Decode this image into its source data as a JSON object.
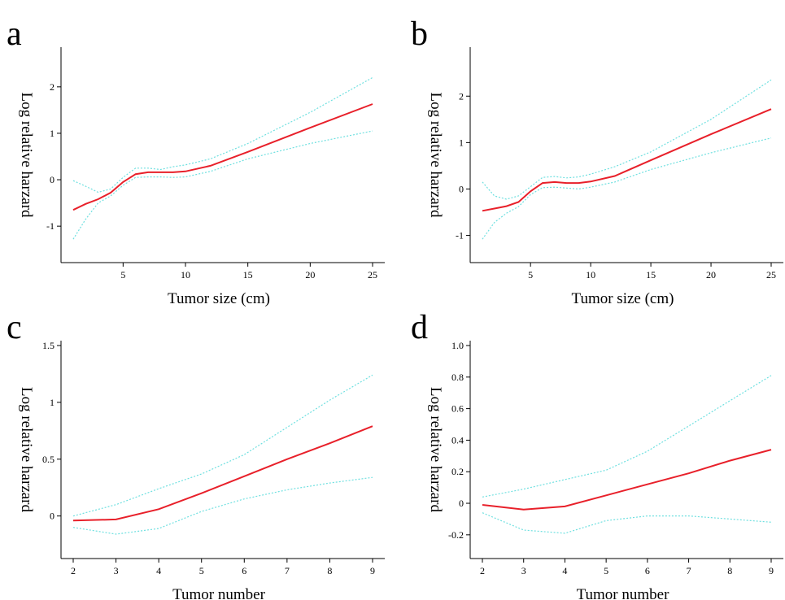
{
  "colors": {
    "estimate": "#e8202a",
    "ci": "#6fe0e0",
    "axis": "#000000"
  },
  "chart_data": [
    {
      "panel": "a",
      "type": "line",
      "xlabel": "Tumor size (cm)",
      "ylabel": "Log relative harzard",
      "xlim": [
        1,
        25
      ],
      "ylim": [
        -1.75,
        2.75
      ],
      "xticks": [
        5,
        10,
        15,
        20,
        25
      ],
      "yticks": [
        -1,
        0,
        1,
        2
      ],
      "series": [
        {
          "role": "estimate",
          "x": [
            1,
            2,
            3,
            4,
            5,
            6,
            7,
            8,
            9,
            10,
            12,
            15,
            20,
            25
          ],
          "y": [
            -0.65,
            -0.52,
            -0.42,
            -0.28,
            -0.05,
            0.12,
            0.16,
            0.16,
            0.16,
            0.18,
            0.3,
            0.6,
            1.12,
            1.63
          ]
        },
        {
          "role": "upper",
          "x": [
            1,
            2,
            3,
            4,
            5,
            6,
            7,
            8,
            9,
            10,
            12,
            15,
            20,
            25
          ],
          "y": [
            -0.02,
            -0.14,
            -0.27,
            -0.2,
            0.05,
            0.25,
            0.25,
            0.22,
            0.28,
            0.32,
            0.45,
            0.78,
            1.45,
            2.2
          ]
        },
        {
          "role": "lower",
          "x": [
            1,
            2,
            3,
            4,
            5,
            6,
            7,
            8,
            9,
            10,
            12,
            15,
            20,
            25
          ],
          "y": [
            -1.28,
            -0.85,
            -0.5,
            -0.35,
            -0.12,
            0.05,
            0.06,
            0.06,
            0.05,
            0.06,
            0.18,
            0.45,
            0.78,
            1.05
          ]
        }
      ]
    },
    {
      "panel": "b",
      "type": "line",
      "xlabel": "Tumor size (cm)",
      "ylabel": "Log relative harzard",
      "xlim": [
        1,
        25
      ],
      "ylim": [
        -1.55,
        2.95
      ],
      "xticks": [
        5,
        10,
        15,
        20,
        25
      ],
      "yticks": [
        -1,
        0,
        1,
        2
      ],
      "series": [
        {
          "role": "estimate",
          "x": [
            1,
            2,
            3,
            4,
            5,
            6,
            7,
            8,
            9,
            10,
            12,
            15,
            20,
            25
          ],
          "y": [
            -0.47,
            -0.42,
            -0.37,
            -0.28,
            -0.05,
            0.13,
            0.15,
            0.13,
            0.13,
            0.16,
            0.28,
            0.62,
            1.18,
            1.72
          ]
        },
        {
          "role": "upper",
          "x": [
            1,
            2,
            3,
            4,
            5,
            6,
            7,
            8,
            9,
            10,
            12,
            15,
            20,
            25
          ],
          "y": [
            0.15,
            -0.15,
            -0.22,
            -0.15,
            0.05,
            0.25,
            0.27,
            0.24,
            0.26,
            0.32,
            0.48,
            0.8,
            1.5,
            2.35
          ]
        },
        {
          "role": "lower",
          "x": [
            1,
            2,
            3,
            4,
            5,
            6,
            7,
            8,
            9,
            10,
            12,
            15,
            20,
            25
          ],
          "y": [
            -1.08,
            -0.72,
            -0.52,
            -0.38,
            -0.12,
            0.03,
            0.04,
            0.02,
            0.0,
            0.04,
            0.15,
            0.42,
            0.78,
            1.1
          ]
        }
      ]
    },
    {
      "panel": "c",
      "type": "line",
      "xlabel": "Tumor number",
      "ylabel": "Log relative harzard",
      "xlim": [
        2,
        9
      ],
      "ylim": [
        -0.36,
        1.5
      ],
      "xticks": [
        2,
        3,
        4,
        5,
        6,
        7,
        8,
        9
      ],
      "yticks": [
        0,
        0.5,
        1,
        1.5
      ],
      "ytick_labels": [
        "0",
        "0.5",
        "1",
        "1.5"
      ],
      "series": [
        {
          "role": "estimate",
          "x": [
            2,
            3,
            4,
            5,
            6,
            7,
            8,
            9
          ],
          "y": [
            -0.04,
            -0.03,
            0.06,
            0.2,
            0.35,
            0.5,
            0.64,
            0.79
          ]
        },
        {
          "role": "upper",
          "x": [
            2,
            3,
            4,
            5,
            6,
            7,
            8,
            9
          ],
          "y": [
            0.0,
            0.1,
            0.24,
            0.37,
            0.54,
            0.78,
            1.02,
            1.24
          ]
        },
        {
          "role": "lower",
          "x": [
            2,
            3,
            4,
            5,
            6,
            7,
            8,
            9
          ],
          "y": [
            -0.1,
            -0.16,
            -0.11,
            0.04,
            0.15,
            0.23,
            0.29,
            0.34
          ]
        }
      ]
    },
    {
      "panel": "d",
      "type": "line",
      "xlabel": "Tumor number",
      "ylabel": "Log relative harzard",
      "xlim": [
        2,
        9
      ],
      "ylim": [
        -0.34,
        1.0
      ],
      "xticks": [
        2,
        3,
        4,
        5,
        6,
        7,
        8,
        9
      ],
      "yticks": [
        -0.2,
        0,
        0.2,
        0.4,
        0.6,
        0.8,
        1.0
      ],
      "ytick_labels": [
        "-0.2",
        "0",
        "0.2",
        "0.4",
        "0.6",
        "0.8",
        "1.0"
      ],
      "series": [
        {
          "role": "estimate",
          "x": [
            2,
            3,
            4,
            5,
            6,
            7,
            8,
            9
          ],
          "y": [
            -0.01,
            -0.04,
            -0.02,
            0.05,
            0.12,
            0.19,
            0.27,
            0.34
          ]
        },
        {
          "role": "upper",
          "x": [
            2,
            3,
            4,
            5,
            6,
            7,
            8,
            9
          ],
          "y": [
            0.04,
            0.09,
            0.15,
            0.21,
            0.33,
            0.49,
            0.65,
            0.81
          ]
        },
        {
          "role": "lower",
          "x": [
            2,
            3,
            4,
            5,
            6,
            7,
            8,
            9
          ],
          "y": [
            -0.06,
            -0.17,
            -0.19,
            -0.11,
            -0.08,
            -0.08,
            -0.1,
            -0.12
          ]
        }
      ]
    }
  ]
}
